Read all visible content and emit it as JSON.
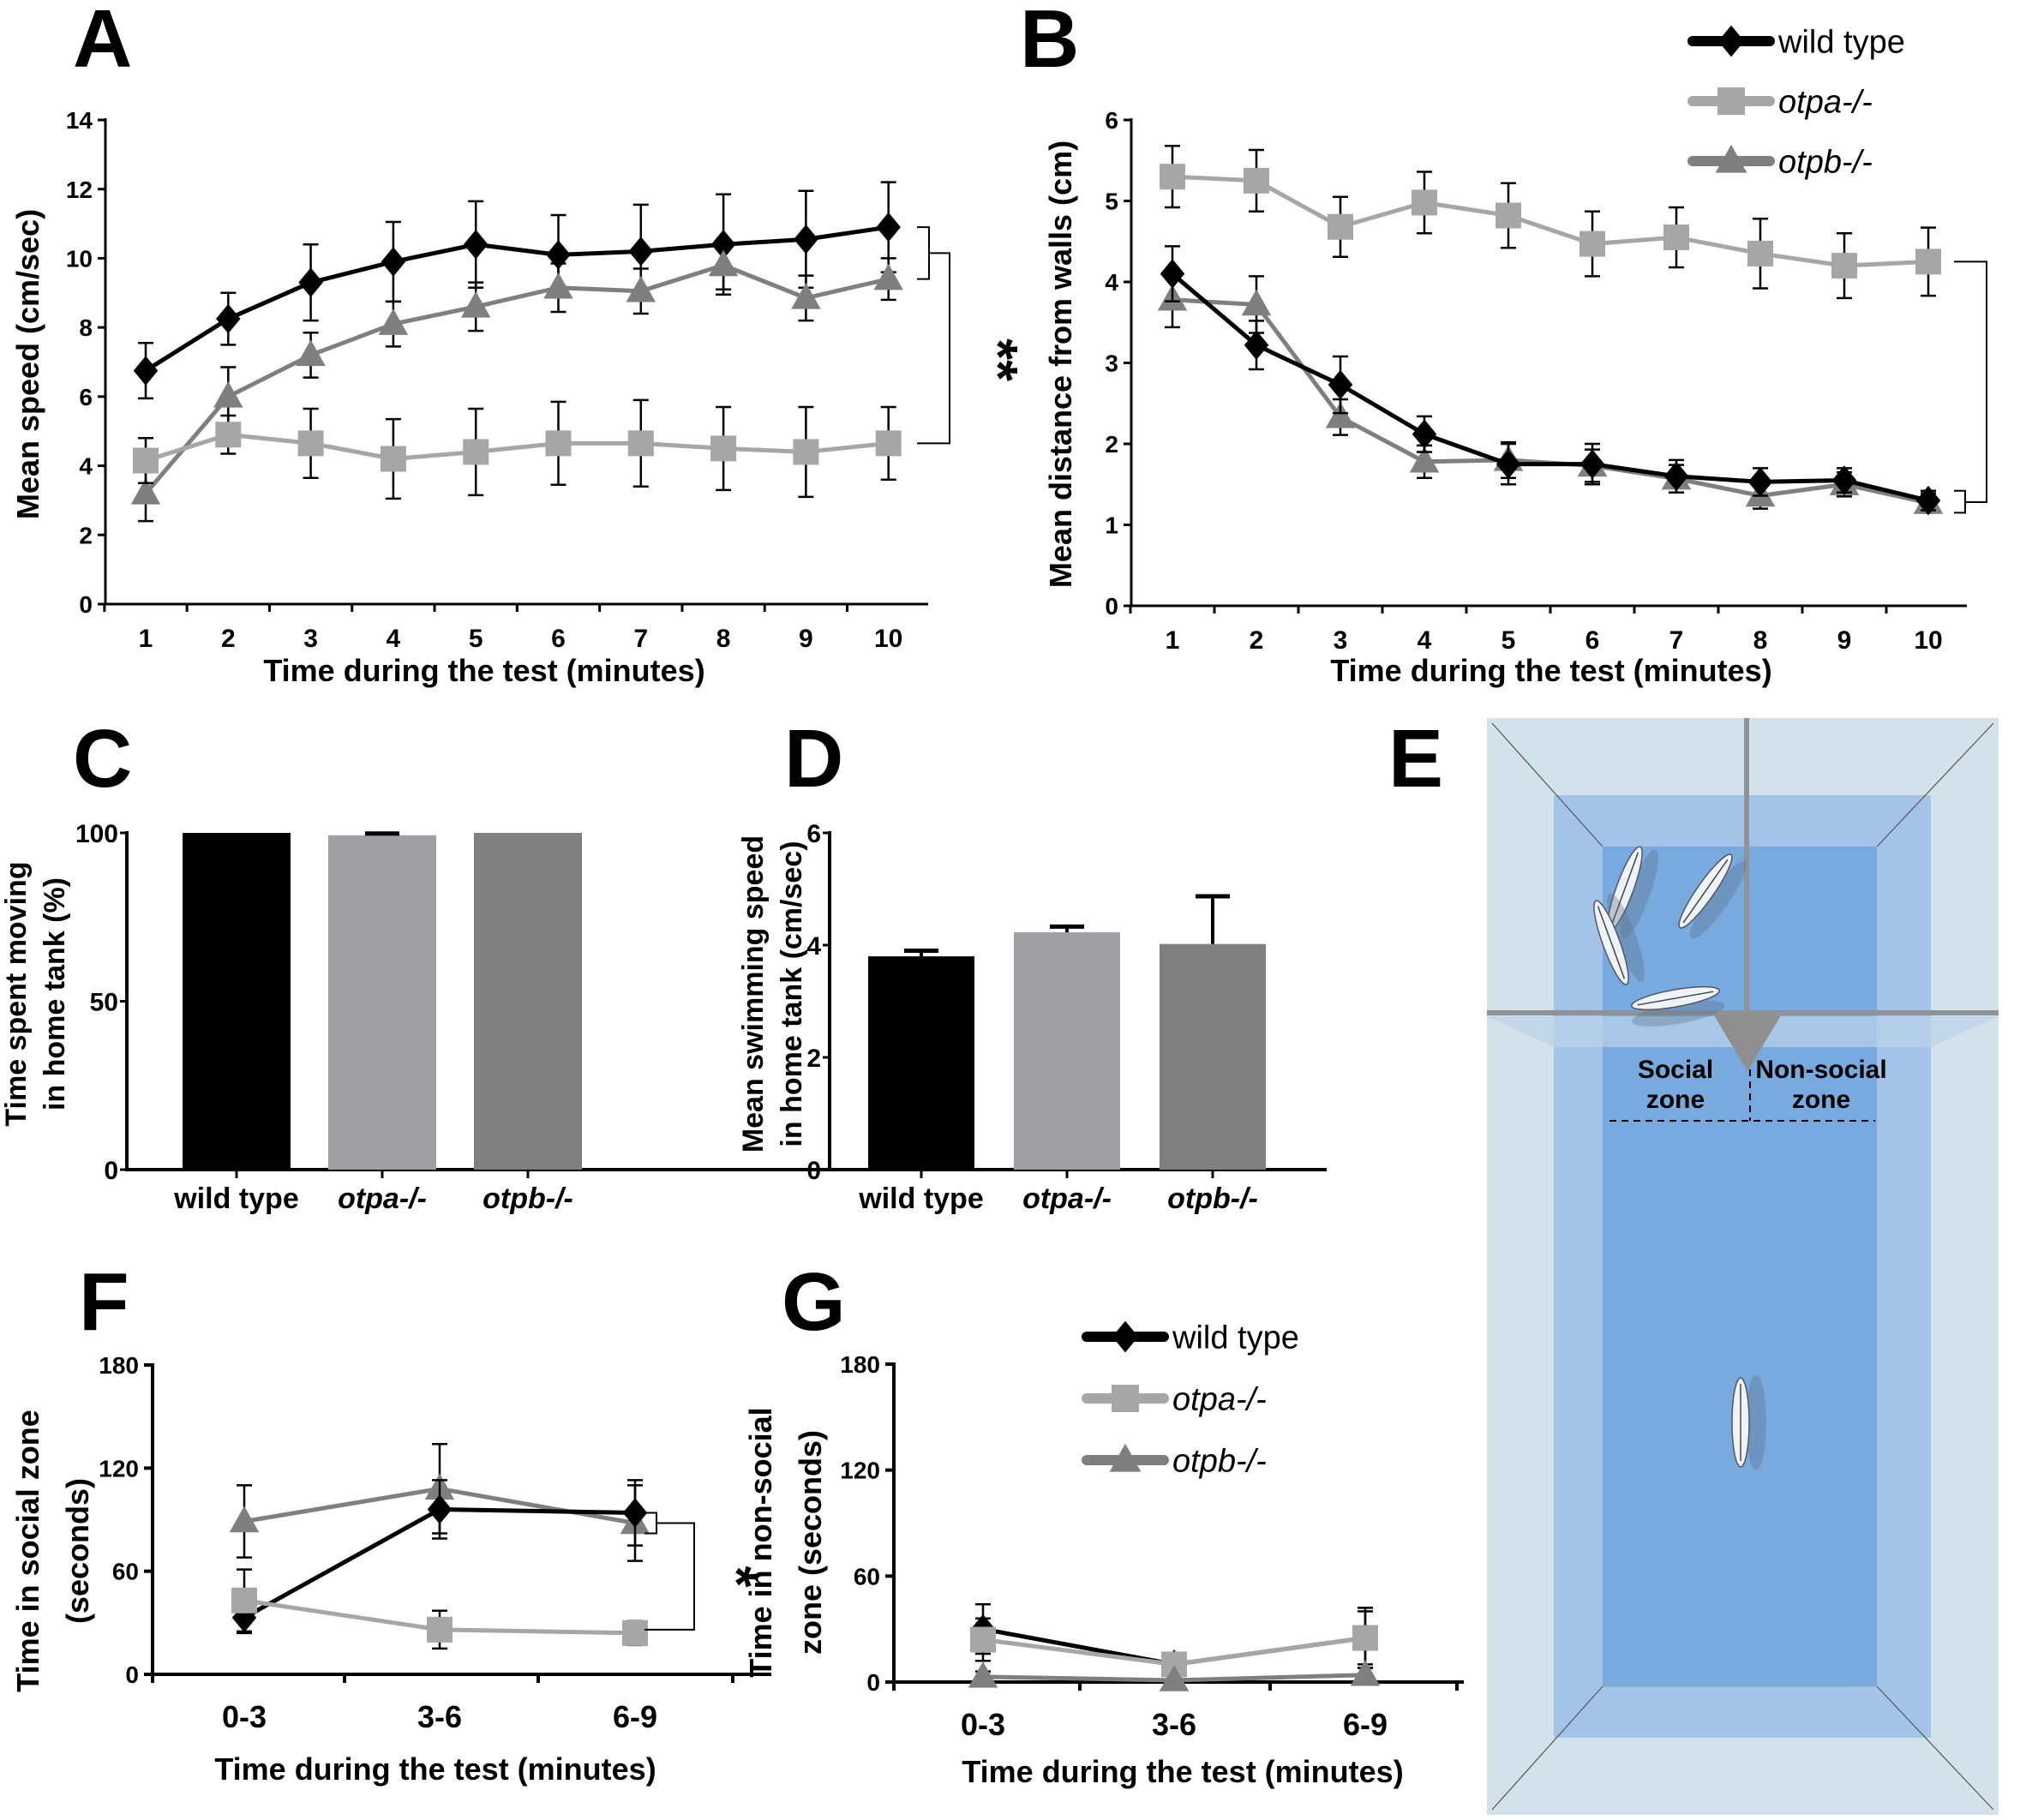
{
  "panel_letters": {
    "A": "A",
    "B": "B",
    "C": "C",
    "D": "D",
    "E": "E",
    "F": "F",
    "G": "G"
  },
  "legend": [
    {
      "label": "wild type",
      "italic": false,
      "marker": "diamond",
      "color": "#000000"
    },
    {
      "label": "otpa-/-",
      "italic": true,
      "marker": "square",
      "color": "#a6a6a6"
    },
    {
      "label": "otpb-/-",
      "italic": true,
      "marker": "triangle",
      "color": "#7f7f7f"
    }
  ],
  "colors": {
    "wild_type": "#000000",
    "otpa": "#a6a6a6",
    "otpb": "#7f7f7f",
    "bar_wt": "#000000",
    "bar_otpa": "#a0a0a4",
    "bar_otpb": "#808080"
  },
  "chart_data": [
    {
      "id": "A",
      "type": "line",
      "xlabel": "Time during the test (minutes)",
      "ylabel": "Mean speed (cm/sec)",
      "x": [
        1,
        2,
        3,
        4,
        5,
        6,
        7,
        8,
        9,
        10
      ],
      "yticks": [
        0,
        2,
        4,
        6,
        8,
        10,
        12,
        14
      ],
      "ylim": [
        0,
        14
      ],
      "series": [
        {
          "name": "wild type",
          "marker": "diamond",
          "values": [
            6.75,
            8.25,
            9.3,
            9.9,
            10.4,
            10.1,
            10.2,
            10.4,
            10.55,
            10.9
          ],
          "err": [
            0.8,
            0.75,
            1.1,
            1.15,
            1.25,
            1.15,
            1.35,
            1.45,
            1.4,
            1.3
          ]
        },
        {
          "name": "otpb-/-",
          "marker": "triangle",
          "values": [
            3.2,
            6.0,
            7.2,
            8.1,
            8.6,
            9.15,
            9.05,
            9.8,
            8.85,
            9.4
          ],
          "err": [
            0.8,
            0.85,
            0.65,
            0.65,
            0.7,
            0.7,
            0.65,
            0.7,
            0.65,
            0.6
          ]
        },
        {
          "name": "otpa-/-",
          "marker": "square",
          "values": [
            4.15,
            4.9,
            4.65,
            4.2,
            4.4,
            4.65,
            4.65,
            4.5,
            4.4,
            4.65
          ],
          "err": [
            0.65,
            0.55,
            1.0,
            1.15,
            1.25,
            1.2,
            1.25,
            1.2,
            1.3,
            1.05
          ]
        }
      ],
      "significance": "**"
    },
    {
      "id": "B",
      "type": "line",
      "xlabel": "Time during the test (minutes)",
      "ylabel": "Mean distance from walls (cm)",
      "x": [
        1,
        2,
        3,
        4,
        5,
        6,
        7,
        8,
        9,
        10
      ],
      "yticks": [
        0,
        1,
        2,
        3,
        4,
        5,
        6
      ],
      "ylim": [
        0,
        6
      ],
      "series": [
        {
          "name": "otpa-/-",
          "marker": "square",
          "values": [
            5.3,
            5.25,
            4.68,
            4.98,
            4.82,
            4.47,
            4.55,
            4.35,
            4.2,
            4.25
          ],
          "err": [
            0.38,
            0.38,
            0.37,
            0.38,
            0.4,
            0.4,
            0.37,
            0.43,
            0.4,
            0.42
          ]
        },
        {
          "name": "otpb-/-",
          "marker": "triangle",
          "values": [
            3.78,
            3.72,
            2.33,
            1.78,
            1.8,
            1.73,
            1.57,
            1.36,
            1.5,
            1.27
          ],
          "err": [
            0.34,
            0.35,
            0.22,
            0.2,
            0.22,
            0.2,
            0.17,
            0.16,
            0.15,
            0.12
          ]
        },
        {
          "name": "wild type",
          "marker": "diamond",
          "values": [
            4.1,
            3.22,
            2.73,
            2.12,
            1.75,
            1.75,
            1.6,
            1.53,
            1.55,
            1.3
          ],
          "err": [
            0.34,
            0.3,
            0.35,
            0.22,
            0.25,
            0.25,
            0.2,
            0.17,
            0.15,
            0.12
          ]
        }
      ],
      "significance": "**"
    },
    {
      "id": "C",
      "type": "bar",
      "ylabel_lines": [
        "Time spent moving",
        "in home tank (%)"
      ],
      "categories": [
        "wild type",
        "otpa-/-",
        "otpb-/-"
      ],
      "italic": [
        false,
        true,
        true
      ],
      "values": [
        100,
        99.3,
        100
      ],
      "err": [
        0,
        0.5,
        0
      ],
      "yticks": [
        0,
        50,
        100
      ],
      "ylim": [
        0,
        100
      ]
    },
    {
      "id": "D",
      "type": "bar",
      "ylabel_lines": [
        "Mean swimming speed",
        "in home tank (cm/sec)"
      ],
      "categories": [
        "wild type",
        "otpa-/-",
        "otpb-/-"
      ],
      "italic": [
        false,
        true,
        true
      ],
      "values": [
        3.8,
        4.23,
        4.02
      ],
      "err": [
        0.1,
        0.1,
        0.85
      ],
      "yticks": [
        0,
        2,
        4,
        6
      ],
      "ylim": [
        0,
        6
      ]
    },
    {
      "id": "F",
      "type": "line",
      "xlabel": "Time during the test (minutes)",
      "ylabel_lines": [
        "Time in social zone",
        "(seconds)"
      ],
      "categories": [
        "0-3",
        "3-6",
        "6-9"
      ],
      "yticks": [
        0,
        60,
        120,
        180
      ],
      "ylim": [
        0,
        180
      ],
      "series": [
        {
          "name": "otpb-/-",
          "marker": "triangle",
          "values": [
            89,
            108,
            88
          ],
          "err": [
            21,
            26,
            22
          ]
        },
        {
          "name": "wild type",
          "marker": "diamond",
          "values": [
            33,
            96,
            94
          ],
          "err": [
            9,
            17,
            19
          ]
        },
        {
          "name": "otpa-/-",
          "marker": "square",
          "values": [
            43,
            26,
            24
          ],
          "err": [
            18,
            11,
            7
          ]
        }
      ],
      "significance": "*"
    },
    {
      "id": "G",
      "type": "line",
      "xlabel": "Time during the test (minutes)",
      "ylabel_lines": [
        "Time in non-social",
        "zone (seconds)"
      ],
      "categories": [
        "0-3",
        "3-6",
        "6-9"
      ],
      "yticks": [
        0,
        60,
        120,
        180
      ],
      "ylim": [
        0,
        180
      ],
      "series": [
        {
          "name": "wild type",
          "marker": "diamond",
          "values": [
            30,
            10,
            25
          ],
          "err": [
            14,
            3,
            17
          ]
        },
        {
          "name": "otpa-/-",
          "marker": "square",
          "values": [
            24,
            10,
            25
          ],
          "err": [
            12,
            3,
            15
          ]
        },
        {
          "name": "otpb-/-",
          "marker": "triangle",
          "values": [
            3,
            1,
            4
          ],
          "err": [
            3,
            1,
            4
          ]
        }
      ]
    }
  ],
  "diagram_E": {
    "zone_labels": {
      "social": [
        "Social",
        "zone"
      ],
      "non_social": [
        "Non-social",
        "zone"
      ]
    },
    "colors": {
      "frame": "#9fa3a8",
      "outer": "#d3e1ea",
      "mid": "#a3c4e8",
      "inner": "#78aadf",
      "divider": "#8f9398"
    }
  }
}
